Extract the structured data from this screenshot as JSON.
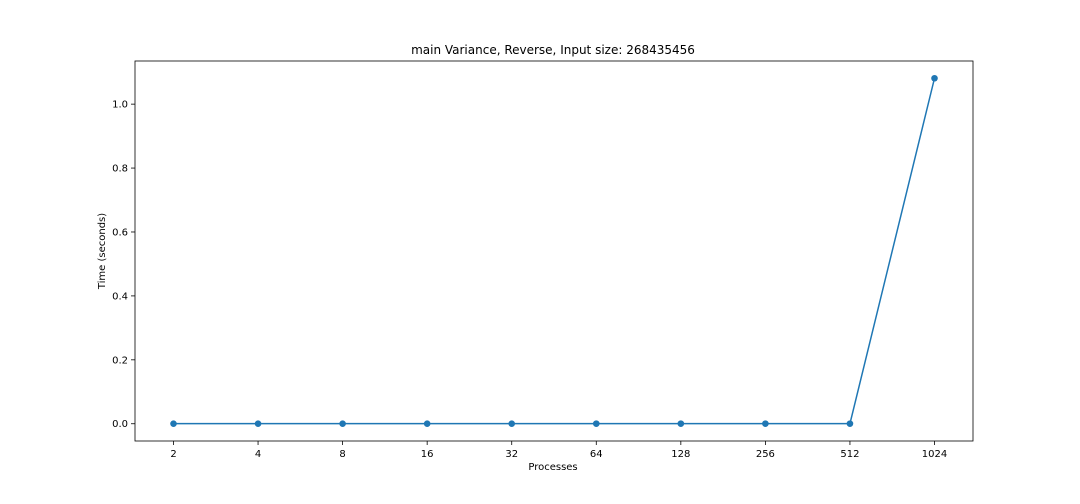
{
  "chart_data": {
    "type": "line",
    "title": "main Variance, Reverse, Input size: 268435456",
    "xlabel": "Processes",
    "ylabel": "Time (seconds)",
    "categories": [
      "2",
      "4",
      "8",
      "16",
      "32",
      "64",
      "128",
      "256",
      "512",
      "1024"
    ],
    "series": [
      {
        "values": [
          0.0002,
          0.0002,
          0.0002,
          0.0002,
          0.0002,
          0.0003,
          0.0003,
          0.0003,
          0.0003,
          1.081
        ]
      }
    ],
    "ylim": [
      -0.054,
      1.135
    ],
    "yticks": [
      "0.0",
      "0.2",
      "0.4",
      "0.6",
      "0.8",
      "1.0"
    ],
    "grid": false,
    "markers": true,
    "color": "#1f77b4"
  }
}
